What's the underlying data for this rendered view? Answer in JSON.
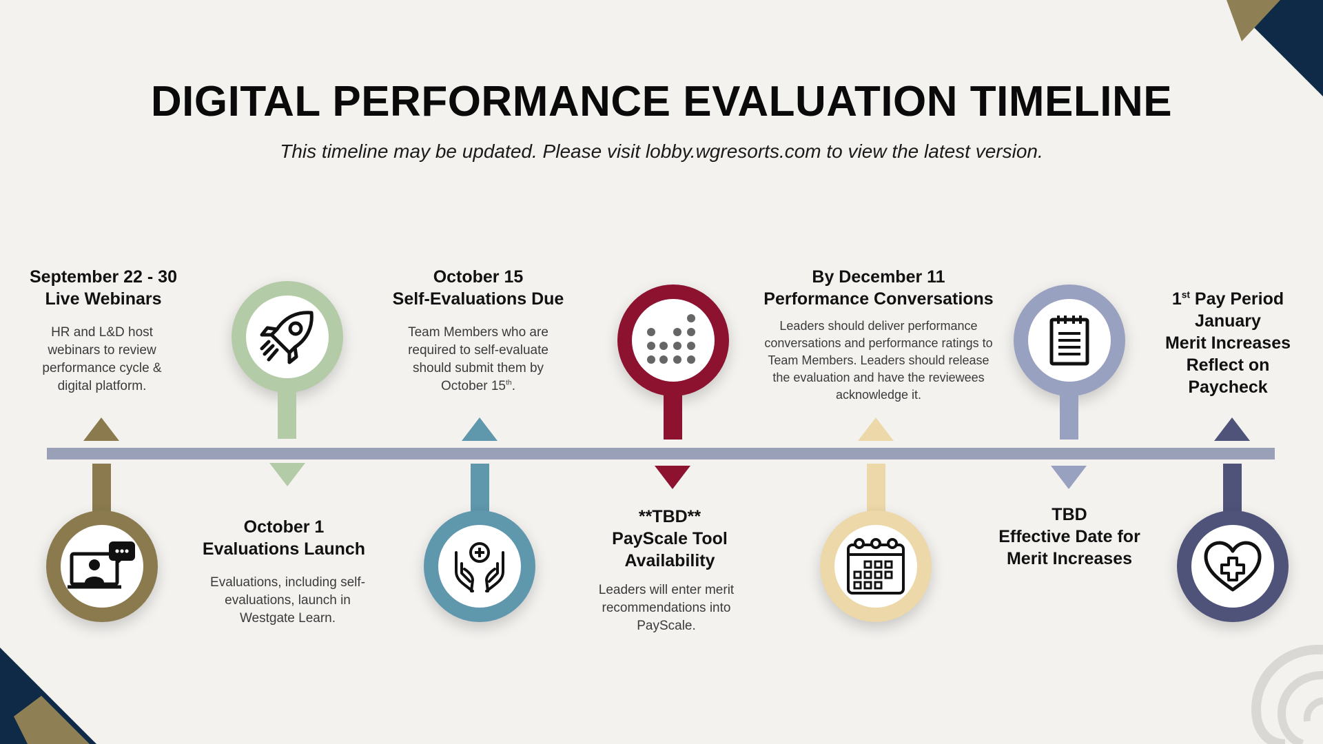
{
  "title": "DIGITAL PERFORMANCE EVALUATION TIMELINE",
  "subtitle": "This timeline may be updated. Please visit lobby.wgresorts.com to view the latest version.",
  "colors": {
    "olive": "#8a7a4e",
    "sage": "#b3cca7",
    "teal": "#5f97ad",
    "crimson": "#8c1230",
    "sand": "#ecd8a8",
    "periwinkle": "#98a1c0",
    "navy": "#4f5379",
    "bar": "#9aa0b8",
    "corner_navy": "#0e2a47",
    "corner_gold": "#8f7f55"
  },
  "milestones": [
    {
      "date": "September 22 - 30",
      "name": "Live Webinars",
      "description": "HR and L&D host webinars to review performance cycle & digital platform.",
      "icon": "video-call-icon"
    },
    {
      "date": "October 1",
      "name": "Evaluations Launch",
      "description": "Evaluations, including self-evaluations, launch in Westgate Learn.",
      "icon": "rocket-icon"
    },
    {
      "date": "October 15",
      "name": "Self-Evaluations Due",
      "description_main": "Team Members who are required to self-evaluate should submit them by October 15",
      "description_sup": "th",
      "description_end": ".",
      "icon": "hands-care-icon"
    },
    {
      "date": "**TBD**",
      "name_line1": "PayScale Tool",
      "name_line2": "Availability",
      "description": "Leaders will enter merit recommendations into PayScale.",
      "icon": "dot-chart-icon"
    },
    {
      "date": "By December 11",
      "name": "Performance Conversations",
      "description": "Leaders should deliver performance conversations and performance ratings to Team Members. Leaders should release the evaluation and have the reviewees acknowledge it.",
      "icon": "calendar-icon"
    },
    {
      "date": "TBD",
      "name_line1": "Effective Date for",
      "name_line2": "Merit Increases",
      "icon": "notepad-icon"
    },
    {
      "date_num": "1",
      "date_sup": "st",
      "date_rest": " Pay Period",
      "line2": "January",
      "line3": "Merit Increases",
      "line4": "Reflect on",
      "line5": "Paycheck",
      "icon": "heart-plus-icon"
    }
  ]
}
